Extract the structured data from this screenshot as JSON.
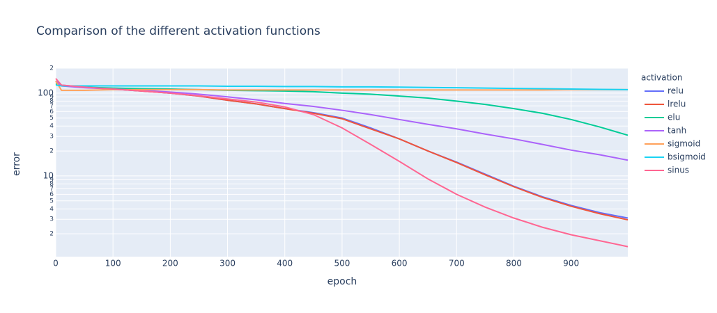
{
  "chart_data": {
    "type": "line",
    "title": "Comparison of the different activation functions",
    "x_label": "epoch",
    "y_label": "error",
    "legend_title": "activation",
    "legend": "right",
    "log_y": true,
    "grid": true,
    "x": [
      0,
      10,
      50,
      100,
      150,
      200,
      250,
      300,
      350,
      400,
      450,
      500,
      550,
      600,
      650,
      700,
      750,
      800,
      850,
      900,
      950,
      999
    ],
    "xlim": [
      0,
      999
    ],
    "xticks": [
      0,
      100,
      200,
      300,
      400,
      500,
      600,
      700,
      800,
      900
    ],
    "ylim": [
      1.06,
      200
    ],
    "yticks": [
      2,
      3,
      4,
      5,
      6,
      7,
      8,
      9,
      10,
      {
        "value": 20,
        "label": "2"
      },
      {
        "value": 30,
        "label": "3"
      },
      {
        "value": 40,
        "label": "4"
      },
      {
        "value": 50,
        "label": "5"
      },
      {
        "value": 60,
        "label": "6"
      },
      {
        "value": 70,
        "label": "7"
      },
      {
        "value": 80,
        "label": "8"
      },
      {
        "value": 90,
        "label": "9"
      },
      100,
      {
        "value": 200,
        "label": "2"
      }
    ],
    "series": [
      {
        "name": "relu",
        "color": "#636efa",
        "values": [
          140,
          125,
          118,
          112,
          106,
          100,
          92,
          82,
          74,
          65,
          58,
          50,
          38,
          28,
          20,
          14.7,
          10.5,
          7.5,
          5.6,
          4.4,
          3.6,
          3.1
        ]
      },
      {
        "name": "lrelu",
        "color": "#ef553b",
        "values": [
          138,
          124,
          117,
          112,
          106,
          100,
          92,
          82,
          74,
          65,
          57,
          49,
          37,
          28,
          20,
          14.5,
          10.3,
          7.4,
          5.5,
          4.3,
          3.5,
          2.95
        ]
      },
      {
        "name": "elu",
        "color": "#00cc96",
        "values": [
          130,
          122,
          118,
          115,
          113,
          112,
          110,
          108,
          107,
          106,
          104,
          100,
          97,
          92,
          87,
          80,
          73,
          65,
          57,
          48,
          39,
          31
        ]
      },
      {
        "name": "tanh",
        "color": "#ab63fa",
        "values": [
          140,
          122,
          116,
          112,
          108,
          103,
          97,
          90,
          83,
          75,
          69,
          62,
          55,
          48,
          42,
          37,
          32,
          28,
          24,
          20.5,
          18,
          15.5
        ]
      },
      {
        "name": "sigmoid",
        "color": "#ffa15a",
        "values": [
          140,
          108,
          108,
          110,
          110,
          110,
          110,
          109,
          109,
          109,
          109,
          109,
          109,
          109,
          109,
          109,
          109,
          109,
          109,
          110,
          110,
          110
        ]
      },
      {
        "name": "bsigmoid",
        "color": "#19d3f3",
        "values": [
          125,
          122,
          122,
          122,
          122,
          122,
          122,
          121,
          121,
          120,
          120,
          119,
          119,
          118,
          117,
          116,
          115,
          114,
          113,
          112,
          111,
          110
        ]
      },
      {
        "name": "sinus",
        "color": "#ff6692",
        "values": [
          150,
          125,
          118,
          112,
          106,
          100,
          93,
          85,
          78,
          68,
          55,
          38,
          24,
          15,
          9.2,
          6.0,
          4.2,
          3.1,
          2.4,
          1.95,
          1.65,
          1.4
        ]
      }
    ]
  }
}
